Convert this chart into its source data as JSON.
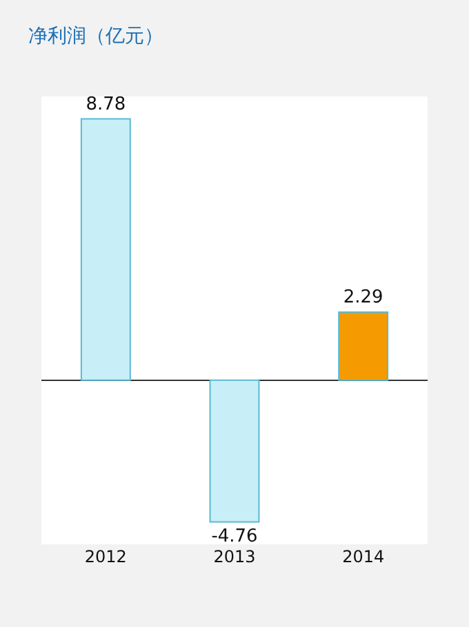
{
  "chart_data": {
    "type": "bar",
    "title": "净利润（亿元）",
    "categories": [
      "2012",
      "2013",
      "2014"
    ],
    "values": [
      8.78,
      -4.76,
      2.29
    ],
    "colors": [
      "#c8eff7",
      "#c8eff7",
      "#f59a00"
    ],
    "data_labels": true
  }
}
